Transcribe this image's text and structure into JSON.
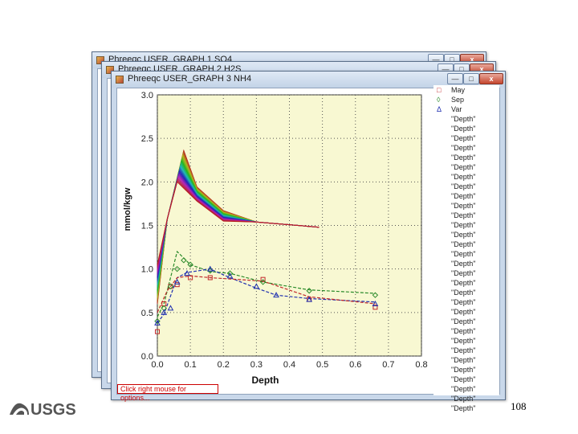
{
  "windows": [
    {
      "title": "Phreeqc USER_GRAPH 1 SO4"
    },
    {
      "title": "Phreeqc USER_GRAPH 2 H2S"
    },
    {
      "title": "Phreeqc USER_GRAPH 3 NH4"
    }
  ],
  "window_controls": {
    "minimize": "—",
    "maximize": "□",
    "close": "x"
  },
  "status_hint": "Click right mouse for options...",
  "logo_text": "USGS",
  "page_number": "108",
  "colors": {
    "titlebar": "#c9d8ea",
    "plot_bg": "#f8f8d2",
    "grid": "#555555"
  },
  "chart_data": {
    "type": "line",
    "title": "",
    "xlabel": "Depth",
    "ylabel": "mmol/kgw",
    "xlim": [
      0,
      0.8
    ],
    "ylim": [
      0,
      3.0
    ],
    "x_ticks": [
      "0.0",
      "0.1",
      "0.2",
      "0.3",
      "0.4",
      "0.5",
      "0.6",
      "0.7",
      "0.8"
    ],
    "y_ticks": [
      "0.0",
      "0.5",
      "1.0",
      "1.5",
      "2.0",
      "2.5",
      "3.0"
    ],
    "grid": true,
    "legend_position": "right",
    "legend": [
      "May",
      "Sep",
      "Var",
      "\"Depth\"",
      "\"Depth\"",
      "\"Depth\"",
      "\"Depth\"",
      "\"Depth\"",
      "\"Depth\"",
      "\"Depth\"",
      "\"Depth\"",
      "\"Depth\"",
      "\"Depth\"",
      "\"Depth\"",
      "\"Depth\"",
      "\"Depth\"",
      "\"Depth\"",
      "\"Depth\"",
      "\"Depth\"",
      "\"Depth\"",
      "\"Depth\"",
      "\"Depth\"",
      "\"Depth\"",
      "\"Depth\"",
      "\"Depth\"",
      "\"Depth\"",
      "\"Depth\"",
      "\"Depth\"",
      "\"Depth\"",
      "\"Depth\"",
      "\"Depth\"",
      "\"Depth\"",
      "\"Depth\"",
      "\"Depth\""
    ],
    "observed": [
      {
        "name": "May",
        "marker": "square",
        "color": "#c0282a",
        "x": [
          0.0,
          0.02,
          0.04,
          0.06,
          0.1,
          0.16,
          0.32,
          0.46,
          0.66
        ],
        "y": [
          0.28,
          0.6,
          0.8,
          0.82,
          0.9,
          0.9,
          0.88,
          0.65,
          0.56
        ]
      },
      {
        "name": "Sep",
        "marker": "diamond",
        "color": "#2a8a2a",
        "x": [
          0.0,
          0.02,
          0.04,
          0.06,
          0.08,
          0.1,
          0.16,
          0.22,
          0.32,
          0.46,
          0.66
        ],
        "y": [
          0.4,
          0.55,
          0.8,
          1.0,
          1.1,
          1.05,
          0.98,
          0.95,
          0.85,
          0.75,
          0.7
        ]
      },
      {
        "name": "Var",
        "marker": "triangle",
        "color": "#2030b0",
        "x": [
          0.0,
          0.02,
          0.04,
          0.06,
          0.09,
          0.16,
          0.22,
          0.3,
          0.36,
          0.46,
          0.66
        ],
        "y": [
          0.38,
          0.5,
          0.55,
          0.85,
          0.95,
          1.0,
          0.92,
          0.8,
          0.7,
          0.65,
          0.6
        ]
      }
    ],
    "model_curves": {
      "count": 31,
      "peak_x": 0.08,
      "peak_y_range": [
        2.0,
        2.36
      ],
      "start_y_range": [
        0.6,
        1.05
      ],
      "converge_x": 0.2,
      "converge_y": 1.55,
      "end_x": 0.49,
      "end_y": 1.48
    },
    "model_lines": [
      {
        "color": "#2a8a2a",
        "x": [
          0.0,
          0.02,
          0.06,
          0.1,
          0.16,
          0.22,
          0.32,
          0.46,
          0.66
        ],
        "y": [
          0.45,
          0.6,
          1.2,
          1.05,
          0.97,
          0.95,
          0.85,
          0.76,
          0.72
        ]
      },
      {
        "color": "#2030b0",
        "x": [
          0.0,
          0.02,
          0.06,
          0.09,
          0.16,
          0.22,
          0.3,
          0.36,
          0.46,
          0.66
        ],
        "y": [
          0.38,
          0.48,
          0.9,
          0.96,
          1.0,
          0.9,
          0.78,
          0.7,
          0.66,
          0.62
        ]
      },
      {
        "color": "#c0282a",
        "x": [
          0.0,
          0.03,
          0.06,
          0.1,
          0.16,
          0.32,
          0.46,
          0.66
        ],
        "y": [
          0.5,
          0.75,
          0.9,
          0.92,
          0.9,
          0.86,
          0.68,
          0.6
        ]
      }
    ]
  }
}
